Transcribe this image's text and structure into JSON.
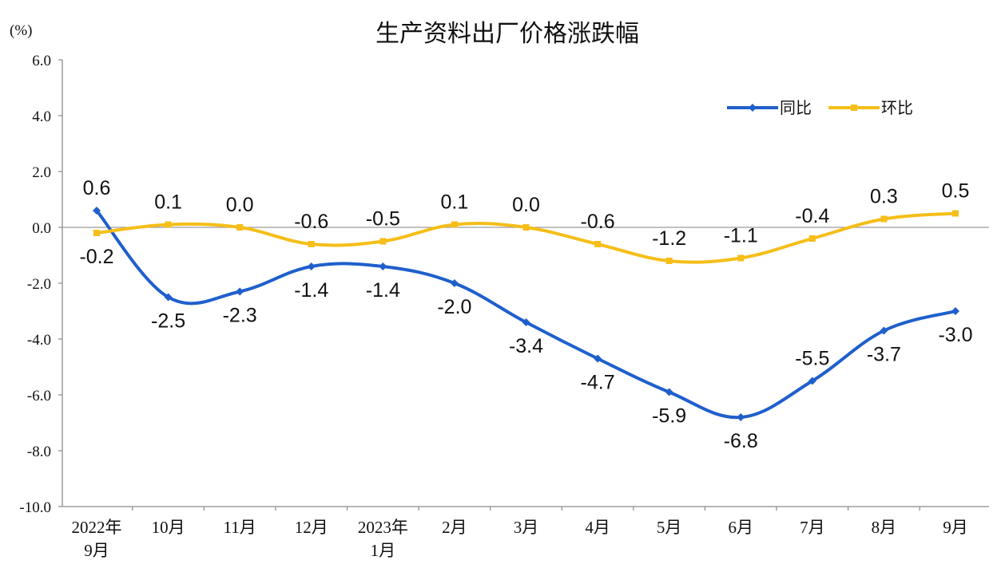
{
  "chart_data": {
    "type": "line",
    "title": "生产资料出厂价格涨跌幅",
    "ylabel": "(%)",
    "xlabel": "",
    "ylim": [
      -10.0,
      6.0
    ],
    "yticks": [
      "6.0",
      "4.0",
      "2.0",
      "0.0",
      "-2.0",
      "-4.0",
      "-6.0",
      "-8.0",
      "-10.0"
    ],
    "categories": [
      [
        "2022年",
        "9月"
      ],
      [
        "10月"
      ],
      [
        "11月"
      ],
      [
        "12月"
      ],
      [
        "2023年",
        "1月"
      ],
      [
        "2月"
      ],
      [
        "3月"
      ],
      [
        "4月"
      ],
      [
        "5月"
      ],
      [
        "6月"
      ],
      [
        "7月"
      ],
      [
        "8月"
      ],
      [
        "9月"
      ]
    ],
    "series": [
      {
        "name": "同比",
        "color": "#1f5fcc",
        "values": [
          0.6,
          -2.5,
          -2.3,
          -1.4,
          -1.4,
          -2.0,
          -3.4,
          -4.7,
          -5.9,
          -6.8,
          -5.5,
          -3.7,
          -3.0
        ],
        "labels": [
          "0.6",
          "-2.5",
          "-2.3",
          "-1.4",
          "-1.4",
          "-2.0",
          "-3.4",
          "-4.7",
          "-5.9",
          "-6.8",
          "-5.5",
          "-3.7",
          "-3.0"
        ]
      },
      {
        "name": "环比",
        "color": "#f5be18",
        "values": [
          -0.2,
          0.1,
          0.0,
          -0.6,
          -0.5,
          0.1,
          0.0,
          -0.6,
          -1.2,
          -1.1,
          -0.4,
          0.3,
          0.5
        ],
        "labels": [
          "-0.2",
          "0.1",
          "0.0",
          "-0.6",
          "-0.5",
          "0.1",
          "0.0",
          "-0.6",
          "-1.2",
          "-1.1",
          "-0.4",
          "0.3",
          "0.5"
        ]
      }
    ],
    "legend": {
      "position": "top-right"
    },
    "grid": false
  }
}
